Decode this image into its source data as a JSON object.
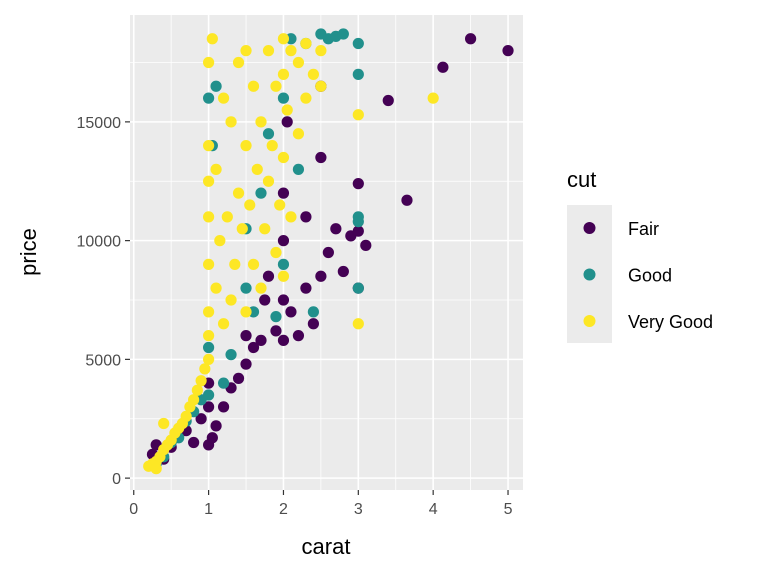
{
  "chart_data": {
    "type": "scatter",
    "xlabel": "carat",
    "ylabel": "price",
    "xlim": [
      -0.05,
      5.2
    ],
    "ylim": [
      -500,
      19500
    ],
    "x_ticks": [
      0,
      1,
      2,
      3,
      4,
      5
    ],
    "y_ticks": [
      0,
      5000,
      10000,
      15000
    ],
    "x_tick_labels": [
      "0",
      "1",
      "2",
      "3",
      "4",
      "5"
    ],
    "y_tick_labels": [
      "0",
      "5000",
      "10000",
      "15000"
    ],
    "grid": true,
    "legend": {
      "title": "cut",
      "position": "right",
      "items": [
        "Fair",
        "Good",
        "Very Good"
      ]
    },
    "series": [
      {
        "name": "Fair",
        "color": "#440154",
        "points": [
          [
            0.25,
            1000
          ],
          [
            0.3,
            1400
          ],
          [
            0.4,
            800
          ],
          [
            0.5,
            1300
          ],
          [
            0.6,
            1800
          ],
          [
            0.7,
            2000
          ],
          [
            0.8,
            1500
          ],
          [
            0.9,
            2500
          ],
          [
            1.0,
            1400
          ],
          [
            1.0,
            3000
          ],
          [
            1.0,
            4000
          ],
          [
            1.05,
            1700
          ],
          [
            1.1,
            2200
          ],
          [
            1.2,
            3000
          ],
          [
            1.3,
            3800
          ],
          [
            1.4,
            4200
          ],
          [
            1.5,
            4800
          ],
          [
            1.5,
            6000
          ],
          [
            1.6,
            5500
          ],
          [
            1.7,
            5800
          ],
          [
            1.75,
            7500
          ],
          [
            1.8,
            8500
          ],
          [
            1.9,
            6200
          ],
          [
            2.0,
            5800
          ],
          [
            2.0,
            7500
          ],
          [
            2.0,
            10000
          ],
          [
            2.0,
            12000
          ],
          [
            2.05,
            15000
          ],
          [
            2.1,
            7000
          ],
          [
            2.2,
            6000
          ],
          [
            2.3,
            8000
          ],
          [
            2.3,
            11000
          ],
          [
            2.4,
            6500
          ],
          [
            2.5,
            8500
          ],
          [
            2.5,
            13500
          ],
          [
            2.5,
            16500
          ],
          [
            2.6,
            9500
          ],
          [
            2.7,
            10500
          ],
          [
            2.8,
            8700
          ],
          [
            2.9,
            10200
          ],
          [
            3.0,
            8000
          ],
          [
            3.0,
            10400
          ],
          [
            3.0,
            12400
          ],
          [
            3.1,
            9800
          ],
          [
            3.4,
            15900
          ],
          [
            3.65,
            11700
          ],
          [
            4.13,
            17300
          ],
          [
            4.5,
            18500
          ],
          [
            5.0,
            18000
          ]
        ]
      },
      {
        "name": "Good",
        "color": "#21908c",
        "points": [
          [
            0.3,
            600
          ],
          [
            0.4,
            900
          ],
          [
            0.5,
            1500
          ],
          [
            0.6,
            1700
          ],
          [
            0.7,
            2400
          ],
          [
            0.8,
            2800
          ],
          [
            0.9,
            3300
          ],
          [
            1.0,
            3500
          ],
          [
            1.0,
            5500
          ],
          [
            1.0,
            16000
          ],
          [
            1.05,
            14000
          ],
          [
            1.1,
            16500
          ],
          [
            1.2,
            4000
          ],
          [
            1.3,
            5200
          ],
          [
            1.5,
            8000
          ],
          [
            1.5,
            10500
          ],
          [
            1.6,
            7000
          ],
          [
            1.7,
            12000
          ],
          [
            1.8,
            14500
          ],
          [
            1.9,
            6800
          ],
          [
            2.0,
            9000
          ],
          [
            2.0,
            16000
          ],
          [
            2.1,
            18500
          ],
          [
            2.2,
            13000
          ],
          [
            2.3,
            18300
          ],
          [
            2.5,
            18700
          ],
          [
            2.6,
            18500
          ],
          [
            2.7,
            18600
          ],
          [
            2.8,
            18700
          ],
          [
            3.0,
            18300
          ],
          [
            3.0,
            17000
          ],
          [
            3.0,
            11000
          ],
          [
            3.0,
            10800
          ],
          [
            3.0,
            8000
          ],
          [
            2.4,
            7000
          ]
        ]
      },
      {
        "name": "Very Good",
        "color": "#fde725",
        "points": [
          [
            0.2,
            500
          ],
          [
            0.25,
            600
          ],
          [
            0.3,
            700
          ],
          [
            0.35,
            900
          ],
          [
            0.4,
            1200
          ],
          [
            0.45,
            1400
          ],
          [
            0.5,
            1600
          ],
          [
            0.55,
            1900
          ],
          [
            0.6,
            2100
          ],
          [
            0.65,
            2300
          ],
          [
            0.7,
            2600
          ],
          [
            0.75,
            3000
          ],
          [
            0.8,
            3300
          ],
          [
            0.85,
            3700
          ],
          [
            0.9,
            4100
          ],
          [
            0.95,
            4600
          ],
          [
            1.0,
            5000
          ],
          [
            1.0,
            6000
          ],
          [
            1.0,
            7000
          ],
          [
            1.0,
            9000
          ],
          [
            1.0,
            11000
          ],
          [
            1.0,
            12500
          ],
          [
            1.0,
            14000
          ],
          [
            1.0,
            17500
          ],
          [
            1.05,
            18500
          ],
          [
            1.1,
            8000
          ],
          [
            1.1,
            13000
          ],
          [
            1.15,
            10000
          ],
          [
            1.2,
            6500
          ],
          [
            1.2,
            16000
          ],
          [
            1.25,
            11000
          ],
          [
            1.3,
            7500
          ],
          [
            1.3,
            15000
          ],
          [
            1.35,
            9000
          ],
          [
            1.4,
            12000
          ],
          [
            1.4,
            17500
          ],
          [
            1.45,
            10500
          ],
          [
            1.5,
            7000
          ],
          [
            1.5,
            14000
          ],
          [
            1.5,
            18000
          ],
          [
            1.55,
            11500
          ],
          [
            1.6,
            9000
          ],
          [
            1.6,
            16500
          ],
          [
            1.65,
            13000
          ],
          [
            1.7,
            8000
          ],
          [
            1.7,
            15000
          ],
          [
            1.75,
            10500
          ],
          [
            1.8,
            12500
          ],
          [
            1.8,
            18000
          ],
          [
            1.85,
            14000
          ],
          [
            1.9,
            9500
          ],
          [
            1.9,
            16500
          ],
          [
            1.95,
            11500
          ],
          [
            2.0,
            8500
          ],
          [
            2.0,
            13500
          ],
          [
            2.0,
            17000
          ],
          [
            2.0,
            18500
          ],
          [
            2.05,
            15500
          ],
          [
            2.1,
            11000
          ],
          [
            2.1,
            18000
          ],
          [
            2.2,
            14500
          ],
          [
            2.2,
            17500
          ],
          [
            2.3,
            16000
          ],
          [
            2.3,
            18300
          ],
          [
            2.4,
            17000
          ],
          [
            2.5,
            18000
          ],
          [
            2.5,
            16500
          ],
          [
            3.0,
            15300
          ],
          [
            3.0,
            6500
          ],
          [
            4.0,
            16000
          ],
          [
            0.4,
            2300
          ],
          [
            0.3,
            400
          ]
        ]
      }
    ]
  }
}
